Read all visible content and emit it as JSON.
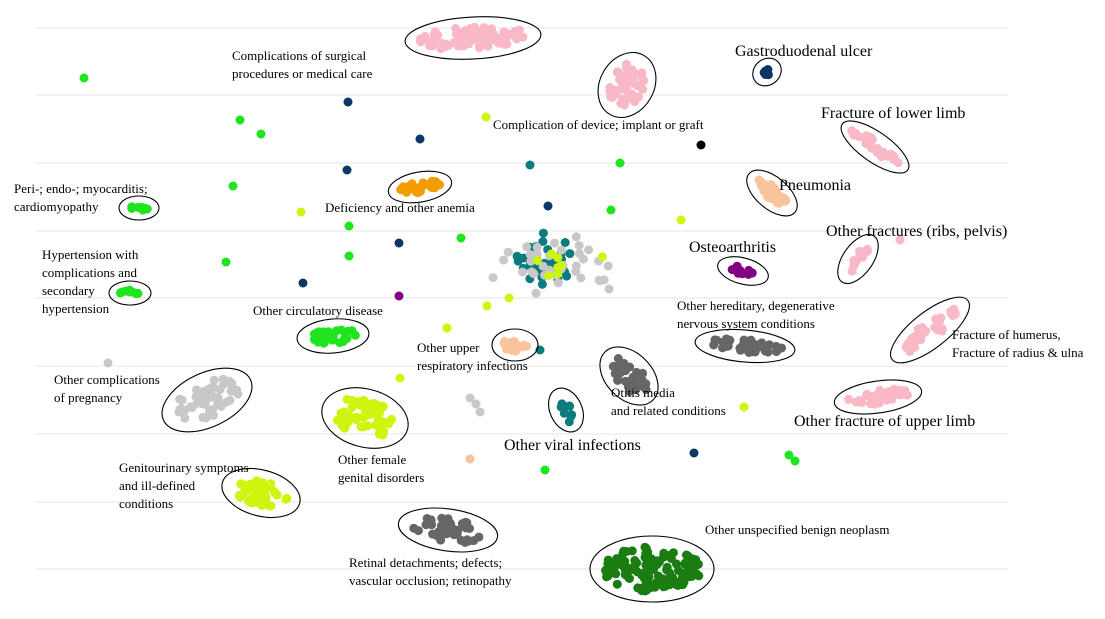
{
  "chart_data": {
    "type": "scatter",
    "grid": "horizontal",
    "axes": false,
    "title": "",
    "xlabel": "",
    "ylabel": "",
    "colors": {
      "pink": "#f9b8c6",
      "navy": "#0d3566",
      "green": "#1fe51f",
      "lime": "#cdf50f",
      "orange": "#f29c00",
      "peach": "#f9c49c",
      "teal": "#0c7b7f",
      "purple": "#820082",
      "gray": "#c8c8c8",
      "darkgray": "#666666",
      "darkgreen": "#1a7d12",
      "black": "#000000"
    },
    "clusters": [
      {
        "name": "Complications of surgical procedures or medical care",
        "label_lines": [
          "Complications  of surgical",
          "procedures or medical care"
        ],
        "color": "pink",
        "center": [
          473,
          38
        ],
        "spread": [
          58,
          12
        ],
        "n": 70,
        "rot": -3
      },
      {
        "name": "Complication of device; implant or graft",
        "label_lines": [
          "Complication  of device;  implant or graft"
        ],
        "color": "pink",
        "center": [
          627,
          85
        ],
        "spread": [
          24,
          18
        ],
        "n": 45,
        "rot": -60
      },
      {
        "name": "Gastroduodenal ulcer",
        "label_lines": [
          "Gastroduodenal  ulcer"
        ],
        "color": "navy",
        "center": [
          767,
          72
        ],
        "spread": [
          5,
          4
        ],
        "n": 5,
        "rot": -40
      },
      {
        "name": "Fracture of lower limb",
        "label_lines": [
          "Fracture of lower limb"
        ],
        "color": "pink",
        "center": [
          875,
          147
        ],
        "spread": [
          30,
          6
        ],
        "n": 25,
        "rot": 35
      },
      {
        "name": "Pneumonia",
        "label_lines": [
          "Pneumonia"
        ],
        "color": "peach",
        "center": [
          772,
          193
        ],
        "spread": [
          20,
          7
        ],
        "n": 30,
        "rot": 40
      },
      {
        "name": "Deficiency and other anemia",
        "label_lines": [
          "Deficiency and other anemia"
        ],
        "color": "orange",
        "center": [
          420,
          187
        ],
        "spread": [
          22,
          6
        ],
        "n": 30,
        "rot": -10
      },
      {
        "name": "Peri-; endo-; myocarditis; cardiomyopathy",
        "label_lines": [
          "Peri-; endo-; myocarditis;",
          "cardiomyopathy"
        ],
        "color": "green",
        "center": [
          139,
          208
        ],
        "spread": [
          10,
          3
        ],
        "n": 8,
        "rot": 0
      },
      {
        "name": "Hypertension with complications and secondary hypertension",
        "label_lines": [
          "Hypertension with",
          "complications and",
          "secondary",
          "hypertension"
        ],
        "color": "green",
        "center": [
          130,
          293
        ],
        "spread": [
          11,
          3
        ],
        "n": 8,
        "rot": 0
      },
      {
        "name": "Other fractures (ribs, pelvis)",
        "label_lines": [
          "Other fractures (ribs, pelvis)"
        ],
        "color": "pink",
        "center": [
          858,
          259
        ],
        "spread": [
          18,
          6
        ],
        "n": 15,
        "rot": -55
      },
      {
        "name": "Osteoarthritis",
        "label_lines": [
          "Osteoarthritis"
        ],
        "color": "purple",
        "center": [
          743,
          271
        ],
        "spread": [
          16,
          4
        ],
        "n": 12,
        "rot": 15
      },
      {
        "name": "Other hereditary, degenerative nervous system conditions",
        "label_lines": [
          "Other hereditary, degenerative",
          "nervous system conditions"
        ],
        "color": "darkgray",
        "center": [
          745,
          346
        ],
        "spread": [
          40,
          7
        ],
        "n": 40,
        "rot": 5
      },
      {
        "name": "Fracture of humerus, Fracture of radius & ulna",
        "label_lines": [
          "Fracture of humerus,",
          "Fracture of radius & ulna"
        ],
        "color": "pink",
        "center": [
          930,
          330
        ],
        "spread": [
          38,
          9
        ],
        "n": 35,
        "rot": -38
      },
      {
        "name": "Other circulatory disease",
        "label_lines": [
          "Other circulatory  disease"
        ],
        "color": "green",
        "center": [
          333,
          336
        ],
        "spread": [
          26,
          8
        ],
        "n": 30,
        "rot": -5
      },
      {
        "name": "Other upper respiratory infections",
        "label_lines": [
          "Other upper",
          "respiratory infections"
        ],
        "color": "peach",
        "center": [
          515,
          345
        ],
        "spread": [
          13,
          7
        ],
        "n": 15,
        "rot": 0
      },
      {
        "name": "Otitis media and related conditions",
        "label_lines": [
          "Otitis media",
          "and related conditions"
        ],
        "color": "darkgray",
        "center": [
          629,
          376
        ],
        "spread": [
          24,
          14
        ],
        "n": 35,
        "rot": 45
      },
      {
        "name": "Other complications of pregnancy",
        "label_lines": [
          "Other complications",
          "of pregnancy"
        ],
        "color": "gray",
        "center": [
          207,
          400
        ],
        "spread": [
          38,
          18
        ],
        "n": 50,
        "rot": -25
      },
      {
        "name": "Other fracture of upper limb",
        "label_lines": [
          "Other fracture of upper limb"
        ],
        "color": "pink",
        "center": [
          878,
          397
        ],
        "spread": [
          34,
          7
        ],
        "n": 35,
        "rot": -8
      },
      {
        "name": "Other viral infections",
        "label_lines": [
          "Other viral infections"
        ],
        "color": "teal",
        "center": [
          566,
          410
        ],
        "spread": [
          6,
          14
        ],
        "n": 10,
        "rot": -25
      },
      {
        "name": "Other female genital disorders",
        "label_lines": [
          "Other female",
          "genital disorders"
        ],
        "color": "lime",
        "center": [
          365,
          418
        ],
        "spread": [
          34,
          20
        ],
        "n": 60,
        "rot": 15
      },
      {
        "name": "Genitourinary symptoms and ill-defined conditions",
        "label_lines": [
          "Genitourinary symptoms",
          "and ill-defined",
          "conditions"
        ],
        "color": "lime",
        "center": [
          261,
          493
        ],
        "spread": [
          30,
          14
        ],
        "n": 45,
        "rot": 15
      },
      {
        "name": "Retinal detachments; defects; vascular occlusion; retinopathy",
        "label_lines": [
          "Retinal detachments;  defects;",
          "vascular occlusion;  retinopathy"
        ],
        "color": "darkgray",
        "center": [
          448,
          530
        ],
        "spread": [
          40,
          12
        ],
        "n": 40,
        "rot": 8
      },
      {
        "name": "Other unspecified benign neoplasm",
        "label_lines": [
          "Other unspecified  benign neoplasm"
        ],
        "color": "darkgreen",
        "center": [
          652,
          569
        ],
        "spread": [
          52,
          24
        ],
        "n": 120,
        "rot": 0
      }
    ],
    "center_mass": [
      {
        "color": "teal",
        "center": [
          548,
          262
        ],
        "spread": [
          30,
          22
        ],
        "n": 40
      },
      {
        "color": "gray",
        "center": [
          555,
          262
        ],
        "spread": [
          60,
          25
        ],
        "n": 35
      },
      {
        "color": "lime",
        "center": [
          560,
          262
        ],
        "spread": [
          40,
          18
        ],
        "n": 8
      }
    ],
    "outliers": [
      {
        "color": "green",
        "points": [
          [
            84,
            78
          ],
          [
            240,
            120
          ],
          [
            261,
            134
          ],
          [
            233,
            186
          ],
          [
            226,
            262
          ],
          [
            349,
            256
          ],
          [
            461,
            238
          ],
          [
            620,
            163
          ],
          [
            611,
            210
          ],
          [
            545,
            470
          ],
          [
            789,
            455
          ],
          [
            795,
            461
          ],
          [
            349,
            226
          ]
        ]
      },
      {
        "color": "navy",
        "points": [
          [
            348,
            102
          ],
          [
            420,
            139
          ],
          [
            347,
            170
          ],
          [
            548,
            206
          ],
          [
            399,
            243
          ],
          [
            303,
            283
          ],
          [
            694,
            453
          ]
        ]
      },
      {
        "color": "lime",
        "points": [
          [
            486,
            117
          ],
          [
            301,
            212
          ],
          [
            681,
            220
          ],
          [
            487,
            306
          ],
          [
            447,
            328
          ],
          [
            400,
            378
          ],
          [
            509,
            298
          ],
          [
            744,
            407
          ]
        ]
      },
      {
        "color": "teal",
        "points": [
          [
            530,
            165
          ],
          [
            540,
            350
          ]
        ]
      },
      {
        "color": "gray",
        "points": [
          [
            108,
            363
          ],
          [
            470,
            398
          ],
          [
            476,
            404
          ],
          [
            480,
            412
          ],
          [
            609,
            289
          ]
        ]
      },
      {
        "color": "black",
        "points": [
          [
            701,
            145
          ]
        ]
      },
      {
        "color": "purple",
        "points": [
          [
            399,
            296
          ]
        ]
      },
      {
        "color": "peach",
        "points": [
          [
            470,
            459
          ]
        ]
      },
      {
        "color": "pink",
        "points": [
          [
            900,
            240
          ]
        ]
      }
    ]
  }
}
